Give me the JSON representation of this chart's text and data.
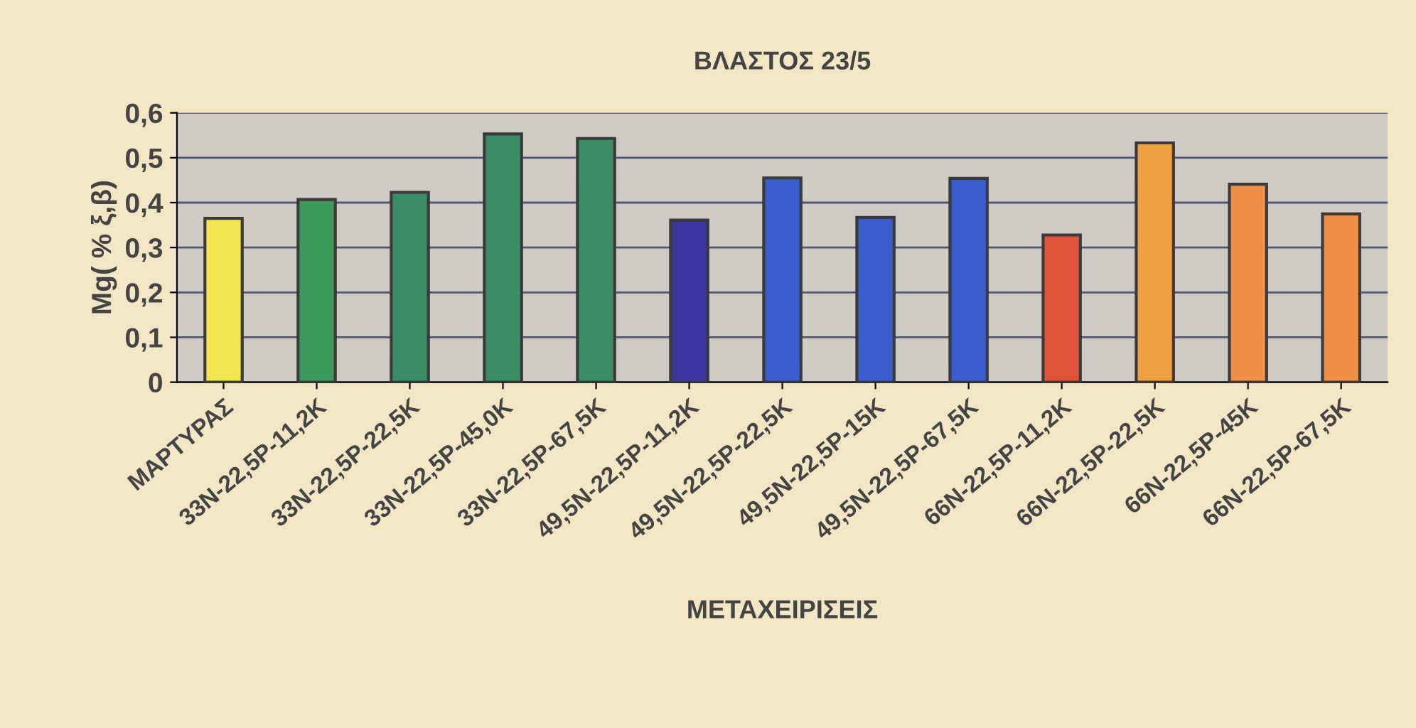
{
  "chart_data": {
    "type": "bar",
    "title": "ΒΛΑΣΤΟΣ 23/5",
    "xlabel": "ΜΕΤΑΧΕΙΡΙΣΕΙΣ",
    "ylabel": "Mg( % ξ,β)",
    "categories": [
      "ΜΑΡΤΥΡΑΣ",
      "33N-22,5P-11,2K",
      "33N-22,5P-22,5K",
      "33N-22,5P-45,0K",
      "33N-22,5P-67,5K",
      "49,5N-22,5P-11,2K",
      "49,5N-22,5P-22,5K",
      "49,5N-22,5P-15K",
      "49,5N-22,5P-67,5K",
      "66N-22,5P-11,2K",
      "66N-22,5P-22,5K",
      "66N-22,5P-45K",
      "66N-22,5P-67,5K"
    ],
    "values": [
      0.365,
      0.407,
      0.423,
      0.553,
      0.543,
      0.361,
      0.455,
      0.367,
      0.454,
      0.328,
      0.533,
      0.441,
      0.375
    ],
    "colors": [
      "#f2e650",
      "#3e9a5c",
      "#3a8c64",
      "#3a8c64",
      "#3a8c64",
      "#3c35a0",
      "#3a5ccc",
      "#3a5ccc",
      "#3a5ccc",
      "#e0553a",
      "#f0a040",
      "#f09048",
      "#f09048"
    ],
    "ylim": [
      0,
      0.6
    ],
    "yticks": [
      {
        "value": 0,
        "label": "0"
      },
      {
        "value": 0.1,
        "label": "0,1"
      },
      {
        "value": 0.2,
        "label": "0,2"
      },
      {
        "value": 0.3,
        "label": "0,3"
      },
      {
        "value": 0.4,
        "label": "0,4"
      },
      {
        "value": 0.5,
        "label": "0,5"
      },
      {
        "value": 0.6,
        "label": "0,6"
      }
    ],
    "grid": "y",
    "legend": false
  }
}
